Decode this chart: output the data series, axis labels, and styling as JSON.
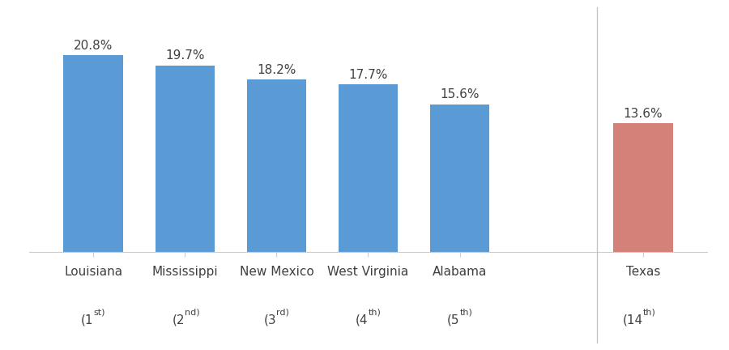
{
  "categories": [
    "Louisiana",
    "Mississippi",
    "New Mexico",
    "West Virginia",
    "Alabama",
    "Texas"
  ],
  "rank_bases": [
    "1",
    "2",
    "3",
    "4",
    "5",
    "14"
  ],
  "rank_superscripts": [
    "st",
    "nd",
    "rd",
    "th",
    "th",
    "th"
  ],
  "values": [
    20.8,
    19.7,
    18.2,
    17.7,
    15.6,
    13.6
  ],
  "bar_colors": [
    "#5b9bd5",
    "#5b9bd5",
    "#5b9bd5",
    "#5b9bd5",
    "#5b9bd5",
    "#d4817a"
  ],
  "background_color": "#ffffff",
  "value_fontsize": 11,
  "label_fontsize": 11,
  "rank_fontsize": 11,
  "rank_sup_fontsize": 8,
  "ylim": [
    0,
    24
  ],
  "xlim": [
    -0.7,
    6.7
  ],
  "x_positions": [
    0,
    1,
    2,
    3,
    4,
    6
  ],
  "bar_width": 0.65,
  "separator_x": 5.5,
  "spine_color": "#cccccc",
  "text_color": "#404040"
}
